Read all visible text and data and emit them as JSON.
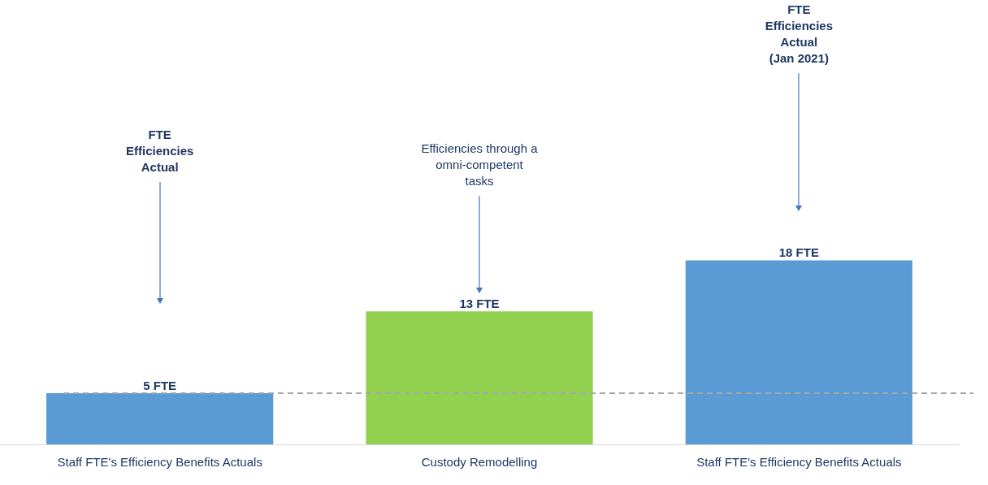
{
  "chart_data": {
    "type": "bar",
    "categories": [
      "Staff FTE's Efficiency Benefits Actuals",
      "Custody Remodelling",
      "Staff FTE's Efficiency Benefits Actuals"
    ],
    "values": [
      5,
      13,
      18
    ],
    "colors": [
      "#5b9bd5",
      "#92d050",
      "#5b9bd5"
    ],
    "value_labels": [
      "5 FTE",
      "13 FTE",
      "18 FTE"
    ],
    "ref_lines": [
      {
        "axis": "y",
        "value": 5,
        "color": "#a6a6a6",
        "line_style": "dashed"
      }
    ],
    "annotations": [
      "FTE\nEfficiencies\nActual",
      "Efficiencies through a\nomni-competent\ntasks",
      "FTE\nEfficiencies\nActual\n(Jan 2021)"
    ],
    "grid": false,
    "legend": false
  }
}
